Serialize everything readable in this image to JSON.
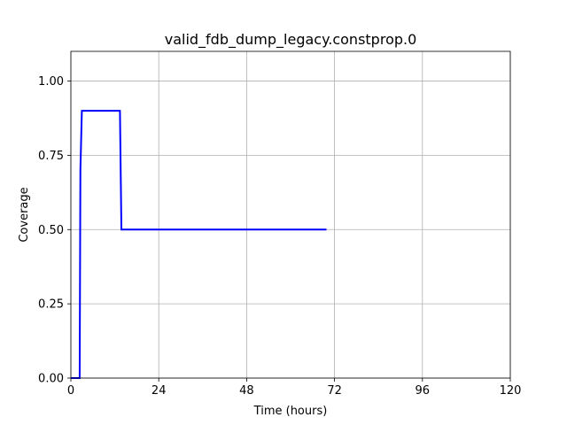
{
  "chart_data": {
    "type": "line",
    "title": "valid_fdb_dump_legacy.constprop.0",
    "xlabel": "Time (hours)",
    "ylabel": "Coverage",
    "xlim": [
      0,
      120
    ],
    "ylim": [
      0,
      1.1
    ],
    "xticks": [
      0,
      24,
      48,
      72,
      96,
      120
    ],
    "xtick_labels": [
      "0",
      "24",
      "48",
      "72",
      "96",
      "120"
    ],
    "yticks": [
      0.0,
      0.25,
      0.5,
      0.75,
      1.0
    ],
    "ytick_labels": [
      "0.00",
      "0.25",
      "0.50",
      "0.75",
      "1.00"
    ],
    "grid": true,
    "series": [
      {
        "color": "#0000ff",
        "x": [
          0,
          2.4,
          2.6,
          3.0,
          13.0,
          13.4,
          13.8,
          69.8
        ],
        "y": [
          0.0,
          0.0,
          0.7,
          0.9,
          0.9,
          0.9,
          0.5,
          0.5
        ]
      }
    ]
  }
}
